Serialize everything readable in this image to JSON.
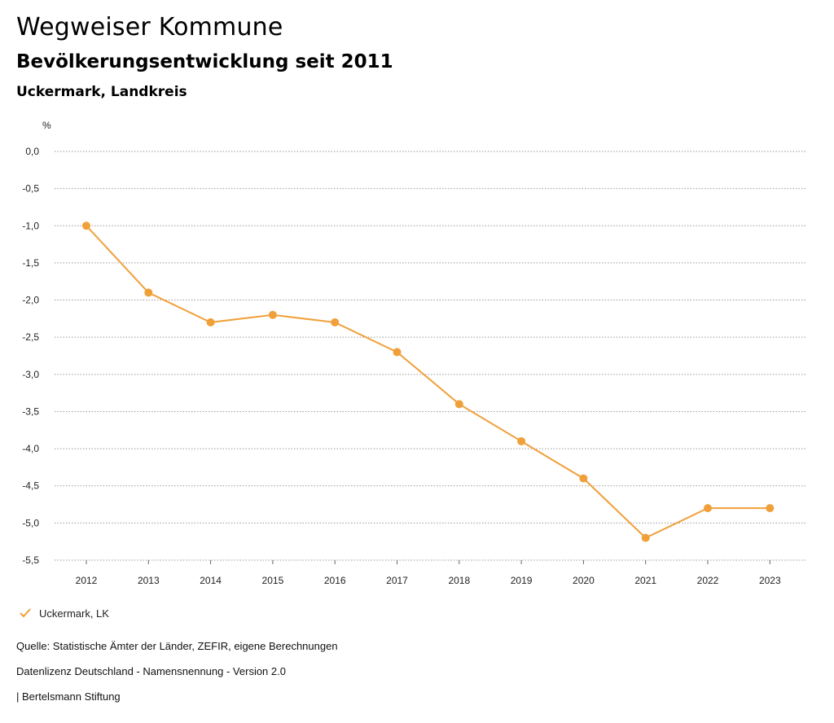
{
  "header": {
    "title": "Wegweiser Kommune",
    "subtitle": "Bevölkerungsentwicklung seit 2011",
    "region": "Uckermark, Landkreis"
  },
  "chart_data": {
    "type": "line",
    "ylabel": "%",
    "ylim": [
      -5.5,
      0
    ],
    "yticks": [
      "0,0",
      "-0,5",
      "-1,0",
      "-1,5",
      "-2,0",
      "-2,5",
      "-3,0",
      "-3,5",
      "-4,0",
      "-4,5",
      "-5,0",
      "-5,5"
    ],
    "ytick_values": [
      0,
      -0.5,
      -1,
      -1.5,
      -2,
      -2.5,
      -3,
      -3.5,
      -4,
      -4.5,
      -5,
      -5.5
    ],
    "categories": [
      "2012",
      "2013",
      "2014",
      "2015",
      "2016",
      "2017",
      "2018",
      "2019",
      "2020",
      "2021",
      "2022",
      "2023"
    ],
    "series": [
      {
        "name": "Uckermark, LK",
        "color": "#f0a03a",
        "values": [
          -1.0,
          -1.9,
          -2.3,
          -2.2,
          -2.3,
          -2.7,
          -3.4,
          -3.9,
          -4.4,
          -5.2,
          -4.8,
          -4.8
        ]
      }
    ],
    "grid": true,
    "legend": "bottom-left"
  },
  "legend": {
    "icon": "check-icon",
    "label": "Uckermark, LK"
  },
  "footer": {
    "source": "Quelle: Statistische Ämter der Länder, ZEFIR, eigene Berechnungen",
    "license": "Datenlizenz Deutschland - Namensnennung - Version 2.0",
    "publisher": "| Bertelsmann Stiftung"
  }
}
